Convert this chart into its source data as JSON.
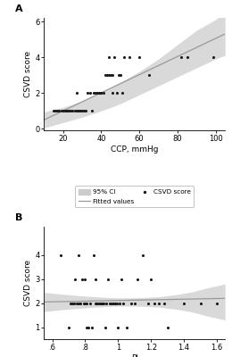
{
  "panel_A": {
    "title": "A",
    "xlabel": "CCP, mmHg",
    "ylabel": "CSVD score",
    "xlim": [
      10,
      105
    ],
    "ylim": [
      -0.1,
      6.2
    ],
    "xticks": [
      20,
      40,
      60,
      80,
      100
    ],
    "yticks": [
      0,
      2,
      4,
      6
    ],
    "scatter_x": [
      15,
      16,
      17,
      18,
      19,
      20,
      21,
      22,
      22,
      23,
      24,
      25,
      26,
      27,
      27,
      28,
      28,
      29,
      30,
      31,
      32,
      33,
      34,
      35,
      36,
      37,
      38,
      39,
      40,
      40,
      41,
      42,
      43,
      44,
      44,
      45,
      46,
      46,
      47,
      48,
      49,
      50,
      51,
      52,
      55,
      60,
      65,
      82,
      85,
      99
    ],
    "scatter_y": [
      1,
      1,
      1,
      1,
      1,
      1,
      1,
      1,
      1,
      1,
      1,
      1,
      1,
      1,
      2,
      1,
      1,
      1,
      1,
      1,
      1,
      2,
      2,
      1,
      2,
      2,
      2,
      2,
      2,
      2,
      2,
      3,
      3,
      4,
      3,
      3,
      2,
      3,
      4,
      2,
      3,
      3,
      2,
      4,
      4,
      4,
      3,
      4,
      4,
      4
    ],
    "fit_x": [
      10,
      105
    ],
    "fit_y": [
      0.5,
      5.3
    ],
    "ci_x": [
      10,
      20,
      30,
      40,
      50,
      60,
      70,
      80,
      90,
      100,
      105
    ],
    "ci_lower": [
      0.05,
      0.35,
      0.65,
      1.0,
      1.4,
      1.9,
      2.4,
      2.9,
      3.4,
      3.9,
      4.1
    ],
    "ci_upper": [
      0.95,
      1.2,
      1.55,
      2.0,
      2.6,
      3.2,
      3.9,
      4.7,
      5.5,
      6.1,
      6.5
    ]
  },
  "panel_B": {
    "title": "B",
    "xlabel": "PI",
    "ylabel": "CSVD score",
    "xlim": [
      0.55,
      1.65
    ],
    "ylim": [
      0.5,
      5.2
    ],
    "xticks": [
      0.6,
      0.8,
      1.0,
      1.2,
      1.4,
      1.6
    ],
    "xticklabels": [
      ".6",
      ".8",
      "1",
      "1.2",
      "1.4",
      "1.6"
    ],
    "yticks": [
      1,
      2,
      3,
      4
    ],
    "scatter_x": [
      0.65,
      0.7,
      0.71,
      0.72,
      0.73,
      0.74,
      0.75,
      0.76,
      0.76,
      0.77,
      0.78,
      0.79,
      0.8,
      0.8,
      0.81,
      0.81,
      0.82,
      0.83,
      0.84,
      0.85,
      0.86,
      0.86,
      0.87,
      0.88,
      0.89,
      0.9,
      0.9,
      0.91,
      0.92,
      0.93,
      0.94,
      0.95,
      0.96,
      0.97,
      0.98,
      0.99,
      1.0,
      1.01,
      1.02,
      1.03,
      1.05,
      1.08,
      1.1,
      1.12,
      1.15,
      1.18,
      1.2,
      1.22,
      1.25,
      1.28,
      1.3,
      1.4,
      1.5,
      1.6
    ],
    "scatter_y": [
      4,
      1,
      2,
      2,
      2,
      3,
      2,
      2,
      4,
      2,
      3,
      2,
      2,
      3,
      1,
      2,
      1,
      2,
      1,
      4,
      3,
      2,
      2,
      2,
      2,
      2,
      2,
      2,
      1,
      2,
      3,
      2,
      2,
      2,
      2,
      2,
      1,
      2,
      3,
      2,
      1,
      2,
      2,
      3,
      4,
      2,
      3,
      2,
      2,
      2,
      1,
      2,
      2,
      2
    ],
    "fit_x": [
      0.55,
      1.65
    ],
    "fit_y": [
      2.05,
      2.2
    ],
    "ci_x": [
      0.55,
      0.65,
      0.75,
      0.85,
      0.95,
      1.05,
      1.15,
      1.25,
      1.35,
      1.45,
      1.55,
      1.65
    ],
    "ci_lower": [
      1.65,
      1.72,
      1.78,
      1.83,
      1.87,
      1.88,
      1.87,
      1.83,
      1.75,
      1.63,
      1.45,
      1.3
    ],
    "ci_upper": [
      2.45,
      2.38,
      2.32,
      2.27,
      2.23,
      2.22,
      2.23,
      2.27,
      2.35,
      2.47,
      2.65,
      2.8
    ]
  },
  "legend_ci_color": "#cccccc",
  "legend_fit_color": "#999999",
  "dot_color": "#1a1a1a",
  "ci_fill_color": "#d0d0d0",
  "background_color": "#ffffff"
}
